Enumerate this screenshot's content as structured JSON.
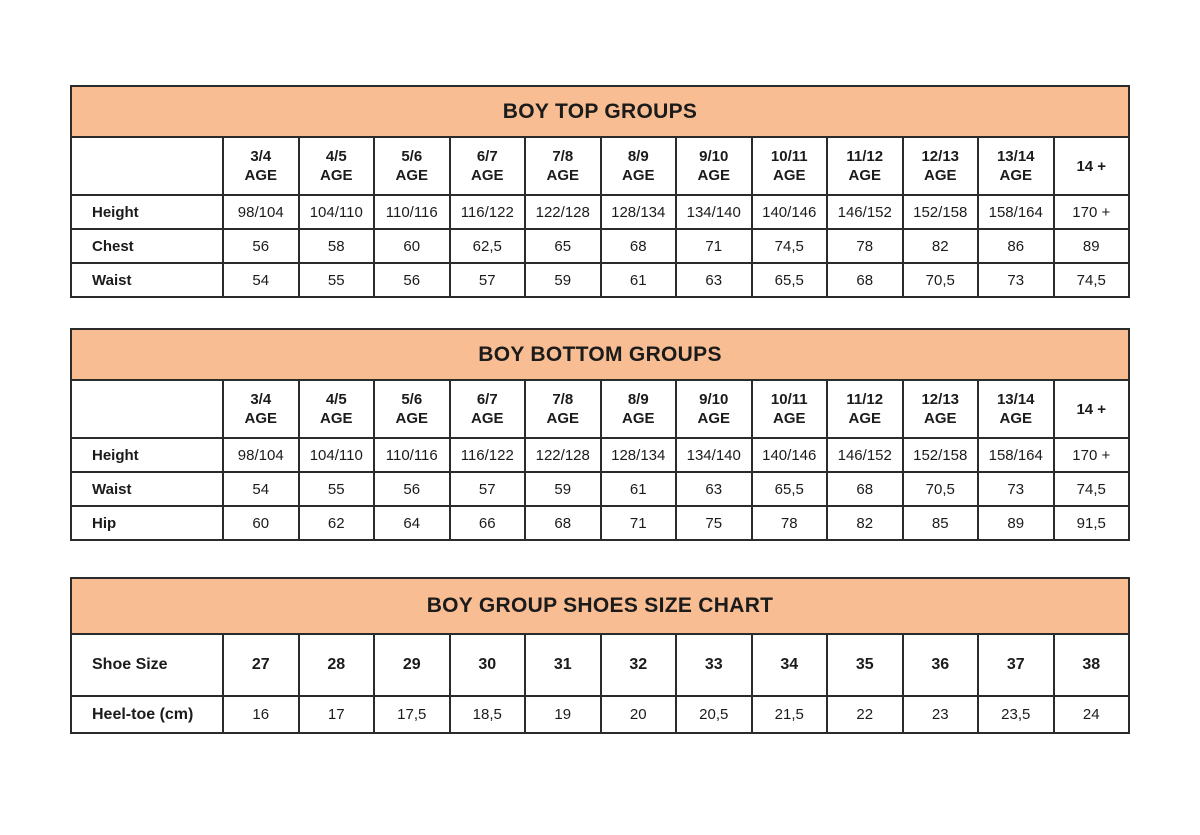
{
  "colors": {
    "background": "#ffffff",
    "title_band": "#f8bd92",
    "table_border": "#2b2b2b",
    "text": "#1b1b1b"
  },
  "t1": {
    "title": "BOY TOP GROUPS",
    "sub": "AGE",
    "heads": [
      "3/4",
      "4/5",
      "5/6",
      "6/7",
      "7/8",
      "8/9",
      "9/10",
      "10/11",
      "11/12",
      "12/13",
      "13/14",
      "14 +"
    ],
    "rows": [
      {
        "label": "Height",
        "v": [
          "98/104",
          "104/110",
          "110/116",
          "116/122",
          "122/128",
          "128/134",
          "134/140",
          "140/146",
          "146/152",
          "152/158",
          "158/164",
          "170 +"
        ]
      },
      {
        "label": "Chest",
        "v": [
          "56",
          "58",
          "60",
          "62,5",
          "65",
          "68",
          "71",
          "74,5",
          "78",
          "82",
          "86",
          "89"
        ]
      },
      {
        "label": "Waist",
        "v": [
          "54",
          "55",
          "56",
          "57",
          "59",
          "61",
          "63",
          "65,5",
          "68",
          "70,5",
          "73",
          "74,5"
        ]
      }
    ]
  },
  "t2": {
    "title": "BOY BOTTOM GROUPS",
    "sub": "AGE",
    "heads": [
      "3/4",
      "4/5",
      "5/6",
      "6/7",
      "7/8",
      "8/9",
      "9/10",
      "10/11",
      "11/12",
      "12/13",
      "13/14",
      "14 +"
    ],
    "rows": [
      {
        "label": "Height",
        "v": [
          "98/104",
          "104/110",
          "110/116",
          "116/122",
          "122/128",
          "128/134",
          "134/140",
          "140/146",
          "146/152",
          "152/158",
          "158/164",
          "170 +"
        ]
      },
      {
        "label": "Waist",
        "v": [
          "54",
          "55",
          "56",
          "57",
          "59",
          "61",
          "63",
          "65,5",
          "68",
          "70,5",
          "73",
          "74,5"
        ]
      },
      {
        "label": "Hip",
        "v": [
          "60",
          "62",
          "64",
          "66",
          "68",
          "71",
          "75",
          "78",
          "82",
          "85",
          "89",
          "91,5"
        ]
      }
    ]
  },
  "t3": {
    "title": "BOY GROUP SHOES SIZE CHART",
    "rows": [
      {
        "label": "Shoe Size",
        "v": [
          "27",
          "28",
          "29",
          "30",
          "31",
          "32",
          "33",
          "34",
          "35",
          "36",
          "37",
          "38"
        ]
      },
      {
        "label": "Heel-toe (cm)",
        "v": [
          "16",
          "17",
          "17,5",
          "18,5",
          "19",
          "20",
          "20,5",
          "21,5",
          "22",
          "23",
          "23,5",
          "24"
        ]
      }
    ]
  }
}
